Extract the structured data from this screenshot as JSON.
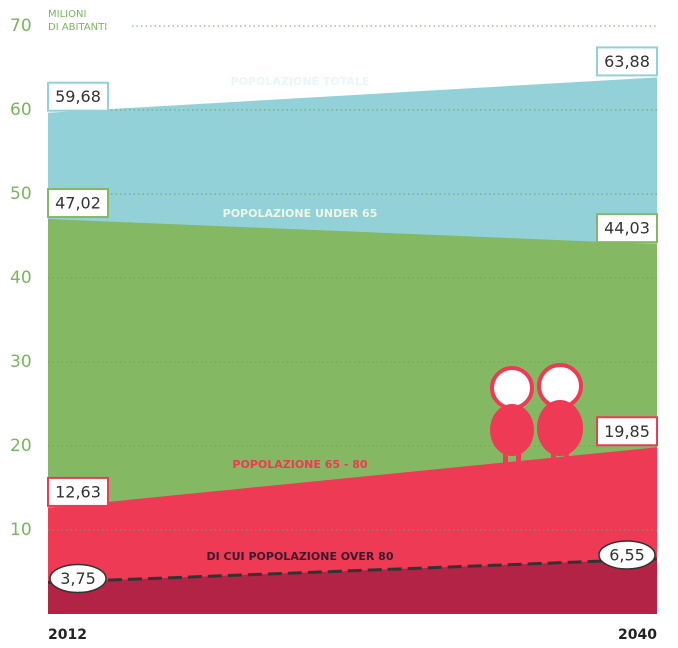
{
  "chart_data": {
    "type": "area",
    "y_label": [
      "MILIONI",
      "DI ABITANTI"
    ],
    "categories": [
      "2012",
      "2040"
    ],
    "series": [
      {
        "name": "POPOLAZIONE TOTALE",
        "color": "#93d1d9",
        "values": [
          59.68,
          63.88
        ],
        "value_labels": [
          "59,68",
          "63,88"
        ]
      },
      {
        "name": "POPOLAZIONE UNDER 65",
        "color": "#84b863",
        "values": [
          47.02,
          44.03
        ],
        "value_labels": [
          "47,02",
          "44,03"
        ]
      },
      {
        "name": "POPOLAZIONE 65 - 80",
        "color": "#ee3a55",
        "values": [
          12.63,
          19.85
        ],
        "value_labels": [
          "12,63",
          "19,85"
        ]
      },
      {
        "name": "DI CUI POPOLAZIONE OVER 80",
        "color": "#b32346",
        "values": [
          3.75,
          6.55
        ],
        "value_labels": [
          "3,75",
          "6,55"
        ]
      }
    ],
    "ylim": [
      0,
      70
    ],
    "yticks": [
      10,
      20,
      30,
      40,
      50,
      60,
      70
    ],
    "grid": true
  }
}
